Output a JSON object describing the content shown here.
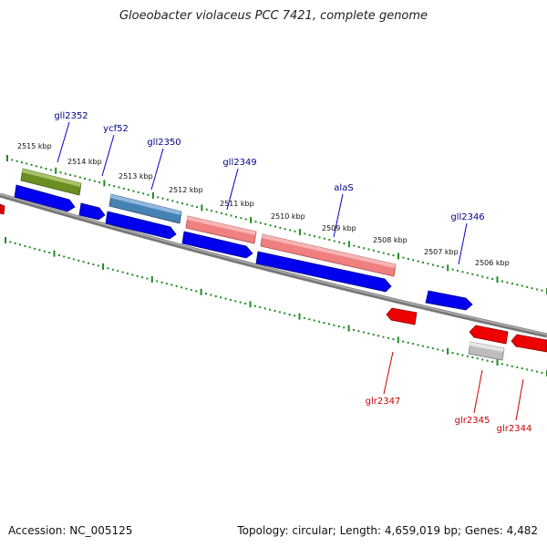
{
  "title": "Gloeobacter violaceus PCC 7421, complete genome",
  "footer": {
    "accession": "Accession: NC_005125",
    "summary": "Topology: circular; Length: 4,659,019 bp; Genes: 4,482"
  },
  "colors": {
    "plus_label": "#00008b",
    "minus_label": "#cc0000",
    "tick": "#228b22",
    "backbone": "#8a8a8a",
    "cds_blue": "#0000ee",
    "cds_green": "#6b8e23",
    "cds_steel": "#4682b4",
    "cds_salmon": "#f08080",
    "cds_red": "#ee0000",
    "cds_gray": "#bdbdbd"
  },
  "kbp_labels": [
    "2515 kbp",
    "2514 kbp",
    "2513 kbp",
    "2512 kbp",
    "2511 kbp",
    "2510 kbp",
    "2509 kbp",
    "2508 kbp",
    "2507 kbp",
    "2506 kbp"
  ],
  "plus_genes": [
    {
      "name": "gll2352"
    },
    {
      "name": "ycf52"
    },
    {
      "name": "gll2350"
    },
    {
      "name": "gll2349"
    },
    {
      "name": "alaS"
    },
    {
      "name": "gll2346"
    }
  ],
  "minus_genes": [
    {
      "name": "glr2347"
    },
    {
      "name": "glr2345"
    },
    {
      "name": "glr2344"
    }
  ]
}
